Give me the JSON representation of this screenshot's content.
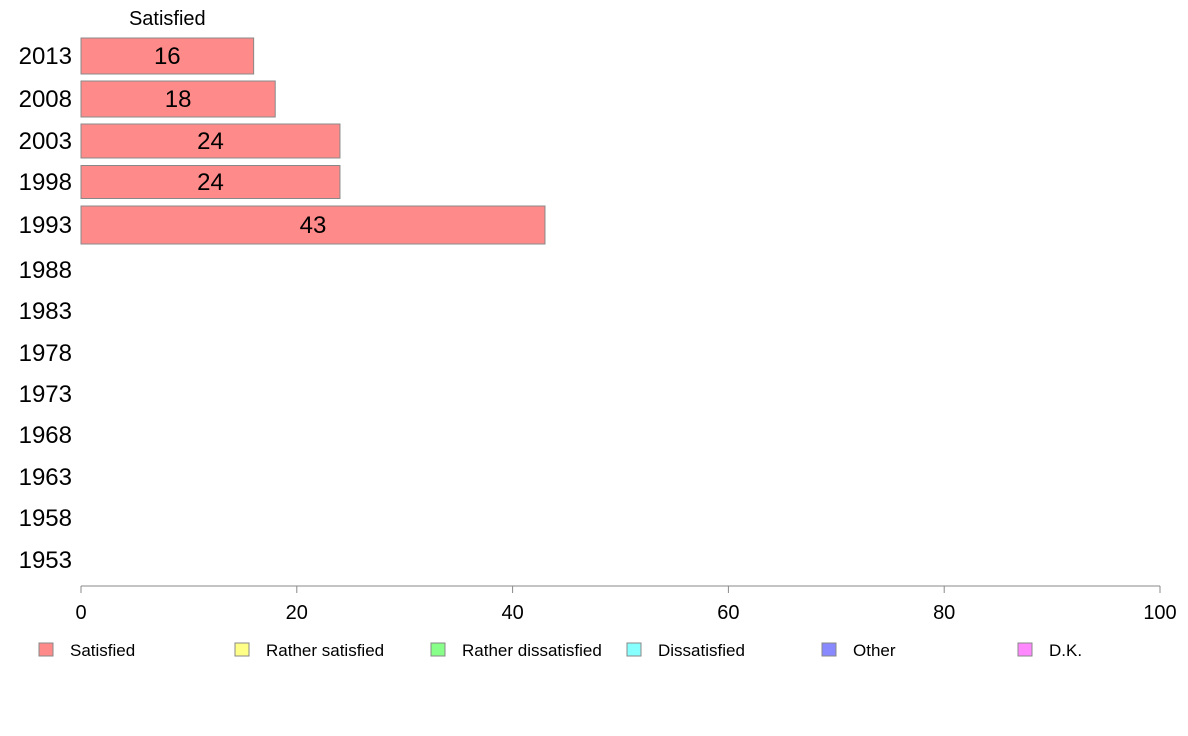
{
  "chart_data": {
    "type": "bar",
    "orientation": "horizontal",
    "stacked": true,
    "categories": [
      "2013",
      "2008",
      "2003",
      "1998",
      "1993",
      "1988",
      "1983",
      "1978",
      "1973",
      "1968",
      "1963",
      "1958",
      "1953"
    ],
    "series": [
      {
        "name": "Satisfied",
        "color": "#ff8a8a",
        "values": [
          16,
          18,
          24,
          24,
          43,
          null,
          null,
          null,
          null,
          null,
          null,
          null,
          null
        ]
      },
      {
        "name": "Rather satisfied",
        "color": "#ffff88",
        "values": [
          null,
          null,
          null,
          null,
          null,
          null,
          null,
          null,
          null,
          null,
          null,
          null,
          null
        ]
      },
      {
        "name": "Rather dissatisfied",
        "color": "#88ff88",
        "values": [
          null,
          null,
          null,
          null,
          null,
          null,
          null,
          null,
          null,
          null,
          null,
          null,
          null
        ]
      },
      {
        "name": "Dissatisfied",
        "color": "#88ffff",
        "values": [
          null,
          null,
          null,
          null,
          null,
          null,
          null,
          null,
          null,
          null,
          null,
          null,
          null
        ]
      },
      {
        "name": "Other",
        "color": "#8888ff",
        "values": [
          null,
          null,
          null,
          null,
          null,
          null,
          null,
          null,
          null,
          null,
          null,
          null,
          null
        ]
      },
      {
        "name": "D.K.",
        "color": "#ff88ff",
        "values": [
          null,
          null,
          null,
          null,
          null,
          null,
          null,
          null,
          null,
          null,
          null,
          null,
          null
        ]
      }
    ],
    "series_header": "Satisfied",
    "xlim": [
      0,
      100
    ],
    "xticks": [
      0,
      20,
      40,
      60,
      80,
      100
    ],
    "grid": false,
    "legend_position": "bottom",
    "title": "",
    "xlabel": "",
    "ylabel": ""
  }
}
